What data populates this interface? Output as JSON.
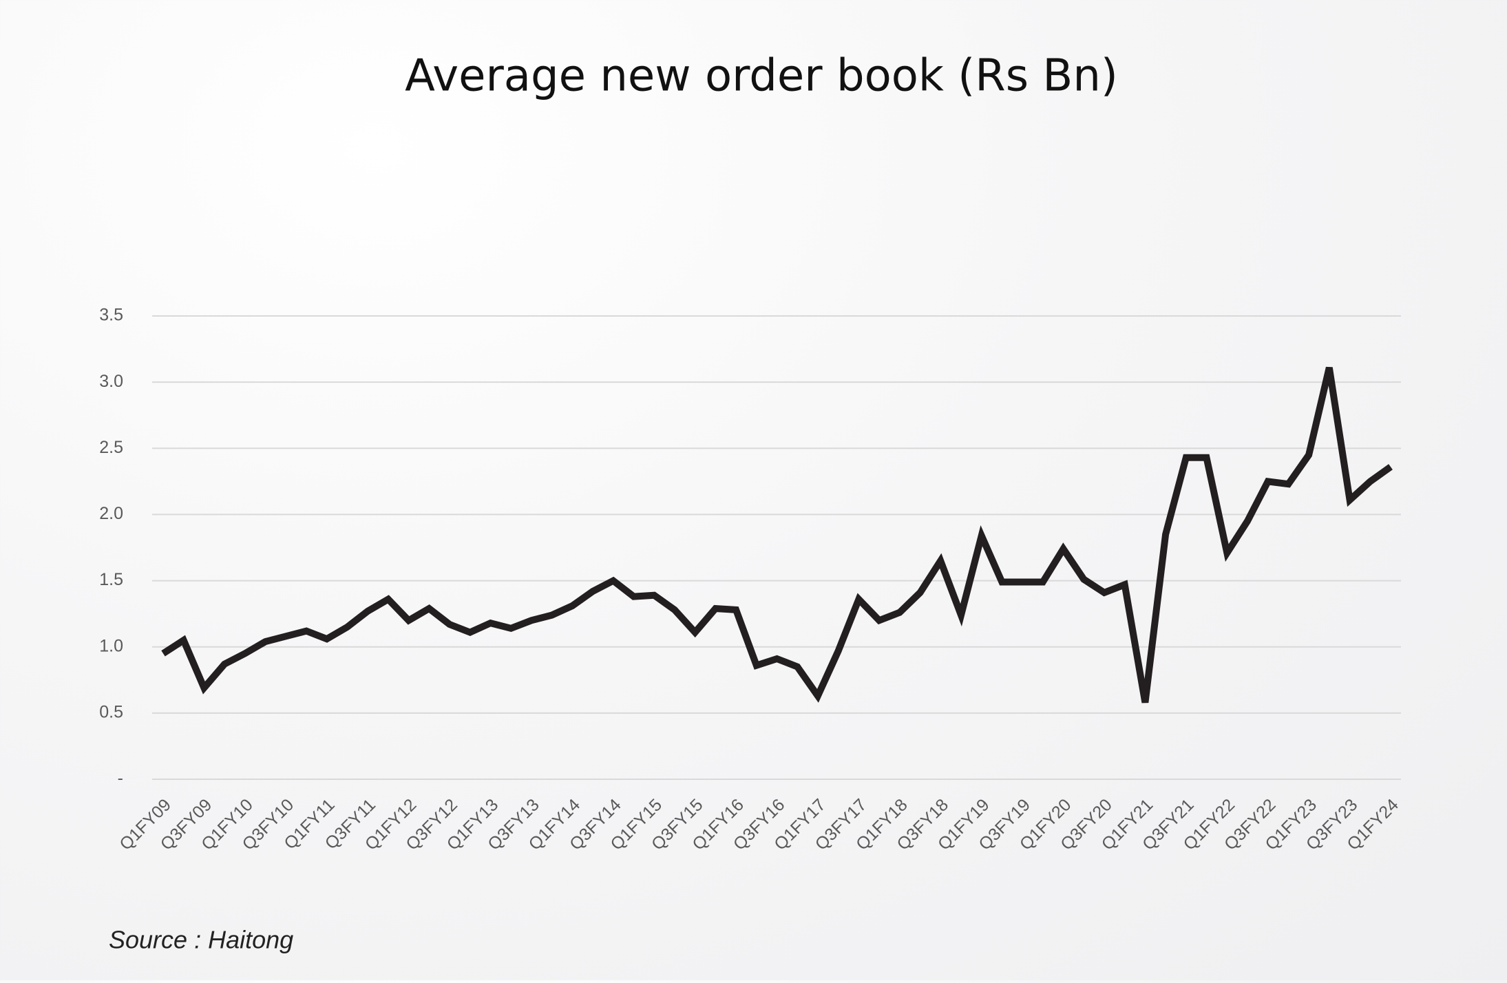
{
  "chart_data": {
    "type": "line",
    "title": "Average new order book (Rs Bn)",
    "source": "Source : Haitong",
    "categories": [
      "Q1FY09",
      null,
      "Q3FY09",
      null,
      "Q1FY10",
      null,
      "Q3FY10",
      null,
      "Q1FY11",
      null,
      "Q3FY11",
      null,
      "Q1FY12",
      null,
      "Q3FY12",
      null,
      "Q1FY13",
      null,
      "Q3FY13",
      null,
      "Q1FY14",
      null,
      "Q3FY14",
      null,
      "Q1FY15",
      null,
      "Q3FY15",
      null,
      "Q1FY16",
      null,
      "Q3FY16",
      null,
      "Q1FY17",
      null,
      "Q3FY17",
      null,
      "Q1FY18",
      null,
      "Q3FY18",
      null,
      "Q1FY19",
      null,
      "Q3FY19",
      null,
      "Q1FY20",
      null,
      "Q3FY20",
      null,
      "Q1FY21",
      null,
      "Q3FY21",
      null,
      "Q1FY22",
      null,
      "Q3FY22",
      null,
      "Q1FY23",
      null,
      "Q3FY23",
      null,
      "Q1FY24"
    ],
    "series": [
      {
        "name": "Average new order book",
        "color": "#231f20",
        "values": [
          0.95,
          1.05,
          0.69,
          0.87,
          0.95,
          1.04,
          1.08,
          1.12,
          1.06,
          1.15,
          1.27,
          1.36,
          1.2,
          1.29,
          1.17,
          1.11,
          1.18,
          1.14,
          1.2,
          1.24,
          1.31,
          1.42,
          1.5,
          1.38,
          1.39,
          1.28,
          1.11,
          1.29,
          1.28,
          0.86,
          0.91,
          0.85,
          0.63,
          0.97,
          1.36,
          1.2,
          1.26,
          1.41,
          1.65,
          1.24,
          1.84,
          1.49,
          1.49,
          1.49,
          1.74,
          1.51,
          1.41,
          1.47,
          0.58,
          1.85,
          2.43,
          2.43,
          1.71,
          1.95,
          2.25,
          2.23,
          2.45,
          3.11,
          2.11,
          2.25,
          2.36
        ]
      }
    ],
    "ylim": [
      0,
      3.5
    ],
    "yticks": [
      {
        "value": 0,
        "label": "-"
      },
      0.5,
      {
        "value": 1,
        "label": "1.0"
      },
      1.5,
      {
        "value": 2,
        "label": "2.0"
      },
      2.5,
      {
        "value": 3,
        "label": "3.0"
      },
      3.5
    ],
    "grid": true
  }
}
